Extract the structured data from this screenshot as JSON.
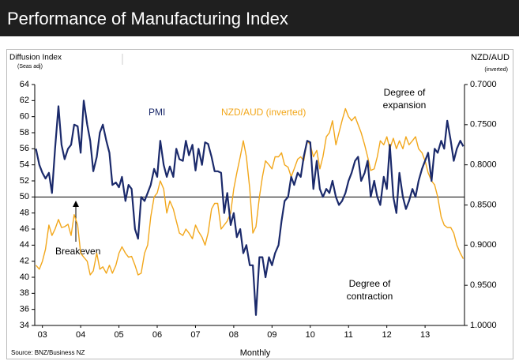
{
  "chart_data": {
    "type": "line",
    "title": "Performance of Manufacturing Index",
    "y_label": "Diffusion Index",
    "y_sublabel": "(Seas adj)",
    "y2_label": "NZD/AUD",
    "y2_sublabel": "(inverted)",
    "x_label": "Monthly",
    "source": "Source: BNZ/Business NZ",
    "annotations": {
      "breakeven": "Breakeven",
      "expansion": [
        "Degree of",
        "expansion"
      ],
      "contraction": [
        "Degree of",
        "contraction"
      ],
      "pmi": "PMI",
      "nzd": "NZD/AUD (inverted)"
    },
    "breakeven": 50,
    "xlim": [
      2002.8,
      2014.03
    ],
    "xticks": [
      {
        "value": 2003,
        "label": "03"
      },
      {
        "value": 2004,
        "label": "04"
      },
      {
        "value": 2005,
        "label": "05"
      },
      {
        "value": 2006,
        "label": "06"
      },
      {
        "value": 2007,
        "label": "07"
      },
      {
        "value": 2008,
        "label": "08"
      },
      {
        "value": 2009,
        "label": "09"
      },
      {
        "value": 2010,
        "label": "10"
      },
      {
        "value": 2011,
        "label": "11"
      },
      {
        "value": 2012,
        "label": "12"
      },
      {
        "value": 2013,
        "label": "13"
      }
    ],
    "ylim": [
      34,
      64
    ],
    "yticks": [
      34,
      36,
      38,
      40,
      42,
      44,
      46,
      48,
      50,
      52,
      54,
      56,
      58,
      60,
      62,
      64
    ],
    "y2lim": [
      1.0,
      0.7
    ],
    "y2ticks": [
      {
        "value": 0.7,
        "label": "0.7000"
      },
      {
        "value": 0.75,
        "label": "0.7500"
      },
      {
        "value": 0.8,
        "label": "0.8000"
      },
      {
        "value": 0.85,
        "label": "0.8500"
      },
      {
        "value": 0.9,
        "label": "0.9000"
      },
      {
        "value": 0.95,
        "label": "0.9500"
      },
      {
        "value": 1.0,
        "label": "1.0000"
      }
    ],
    "x": [
      2002.83,
      2002.92,
      2003.0,
      2003.08,
      2003.17,
      2003.25,
      2003.33,
      2003.42,
      2003.5,
      2003.58,
      2003.67,
      2003.75,
      2003.83,
      2003.92,
      2004.0,
      2004.08,
      2004.17,
      2004.25,
      2004.33,
      2004.42,
      2004.5,
      2004.58,
      2004.67,
      2004.75,
      2004.83,
      2004.92,
      2005.0,
      2005.08,
      2005.17,
      2005.25,
      2005.33,
      2005.42,
      2005.5,
      2005.58,
      2005.67,
      2005.75,
      2005.83,
      2005.92,
      2006.0,
      2006.08,
      2006.17,
      2006.25,
      2006.33,
      2006.42,
      2006.5,
      2006.58,
      2006.67,
      2006.75,
      2006.83,
      2006.92,
      2007.0,
      2007.08,
      2007.17,
      2007.25,
      2007.33,
      2007.42,
      2007.5,
      2007.58,
      2007.67,
      2007.75,
      2007.83,
      2007.92,
      2008.0,
      2008.08,
      2008.17,
      2008.25,
      2008.33,
      2008.42,
      2008.5,
      2008.58,
      2008.67,
      2008.75,
      2008.83,
      2008.92,
      2009.0,
      2009.08,
      2009.17,
      2009.25,
      2009.33,
      2009.42,
      2009.5,
      2009.58,
      2009.67,
      2009.75,
      2009.83,
      2009.92,
      2010.0,
      2010.08,
      2010.17,
      2010.25,
      2010.33,
      2010.42,
      2010.5,
      2010.58,
      2010.67,
      2010.75,
      2010.83,
      2010.92,
      2011.0,
      2011.08,
      2011.17,
      2011.25,
      2011.33,
      2011.42,
      2011.5,
      2011.58,
      2011.67,
      2011.75,
      2011.83,
      2011.92,
      2012.0,
      2012.08,
      2012.17,
      2012.25,
      2012.33,
      2012.42,
      2012.5,
      2012.58,
      2012.67,
      2012.75,
      2012.83,
      2012.92,
      2013.0,
      2013.08,
      2013.17,
      2013.25,
      2013.33,
      2013.42,
      2013.5,
      2013.58,
      2013.67,
      2013.75,
      2013.83,
      2013.92,
      2014.0
    ],
    "series": [
      {
        "name": "PMI",
        "color": "#1b2a6b",
        "values": [
          56,
          54,
          53,
          52.3,
          53,
          50.5,
          56,
          61.3,
          56.5,
          54.7,
          56,
          56.5,
          59,
          58.8,
          55.5,
          62,
          59,
          57,
          53.2,
          55,
          58,
          59,
          57,
          55.5,
          51.5,
          51.8,
          51.2,
          52.5,
          49.5,
          51.5,
          51,
          46,
          44.8,
          50,
          49.5,
          50.5,
          51.5,
          53.5,
          52.5,
          57,
          54,
          52.5,
          53.8,
          52.5,
          56,
          54.7,
          54.5,
          57,
          55.2,
          56.5,
          53.3,
          56,
          54,
          56.8,
          56.6,
          55,
          53.2,
          53.2,
          53,
          48,
          50.5,
          46.5,
          48,
          45,
          46,
          43,
          44,
          41.5,
          41.5,
          35.3,
          42.5,
          42.5,
          40,
          42.5,
          41.5,
          43,
          44,
          47,
          49.5,
          50,
          52.5,
          51.5,
          53,
          52.5,
          55,
          57,
          56.8,
          51,
          54.5,
          51,
          50,
          51,
          50.5,
          52,
          50,
          49,
          49.5,
          50.5,
          52,
          53,
          54.5,
          55,
          52,
          53,
          54.5,
          50,
          52,
          50,
          49,
          52.5,
          51,
          56.5,
          50,
          48,
          53,
          50,
          48.5,
          49.5,
          51,
          50,
          52,
          53.5,
          54.5,
          55.5,
          52,
          56,
          55.5,
          57,
          56,
          59.5,
          57,
          54.5,
          56,
          57,
          56.3
        ]
      },
      {
        "name": "NZD/AUD (inverted)",
        "color": "#f2a71b",
        "axis": "y2",
        "values": [
          0.925,
          0.93,
          0.92,
          0.905,
          0.875,
          0.888,
          0.88,
          0.868,
          0.878,
          0.877,
          0.874,
          0.888,
          0.862,
          0.875,
          0.91,
          0.915,
          0.92,
          0.937,
          0.932,
          0.91,
          0.93,
          0.927,
          0.935,
          0.925,
          0.935,
          0.925,
          0.91,
          0.902,
          0.91,
          0.915,
          0.914,
          0.925,
          0.937,
          0.935,
          0.91,
          0.9,
          0.865,
          0.84,
          0.835,
          0.82,
          0.83,
          0.86,
          0.845,
          0.855,
          0.87,
          0.885,
          0.888,
          0.88,
          0.885,
          0.892,
          0.875,
          0.883,
          0.89,
          0.9,
          0.885,
          0.855,
          0.848,
          0.848,
          0.88,
          0.875,
          0.87,
          0.86,
          0.83,
          0.81,
          0.79,
          0.77,
          0.79,
          0.83,
          0.885,
          0.877,
          0.84,
          0.815,
          0.795,
          0.8,
          0.805,
          0.79,
          0.79,
          0.785,
          0.8,
          0.803,
          0.815,
          0.805,
          0.793,
          0.79,
          0.795,
          0.77,
          0.775,
          0.79,
          0.782,
          0.805,
          0.79,
          0.765,
          0.76,
          0.745,
          0.775,
          0.76,
          0.745,
          0.73,
          0.74,
          0.745,
          0.74,
          0.75,
          0.76,
          0.775,
          0.79,
          0.807,
          0.805,
          0.79,
          0.77,
          0.775,
          0.765,
          0.78,
          0.767,
          0.78,
          0.77,
          0.78,
          0.765,
          0.775,
          0.77,
          0.765,
          0.78,
          0.785,
          0.795,
          0.81,
          0.82,
          0.825,
          0.84,
          0.865,
          0.875,
          0.878,
          0.878,
          0.885,
          0.9,
          0.91,
          0.917
        ]
      }
    ]
  }
}
